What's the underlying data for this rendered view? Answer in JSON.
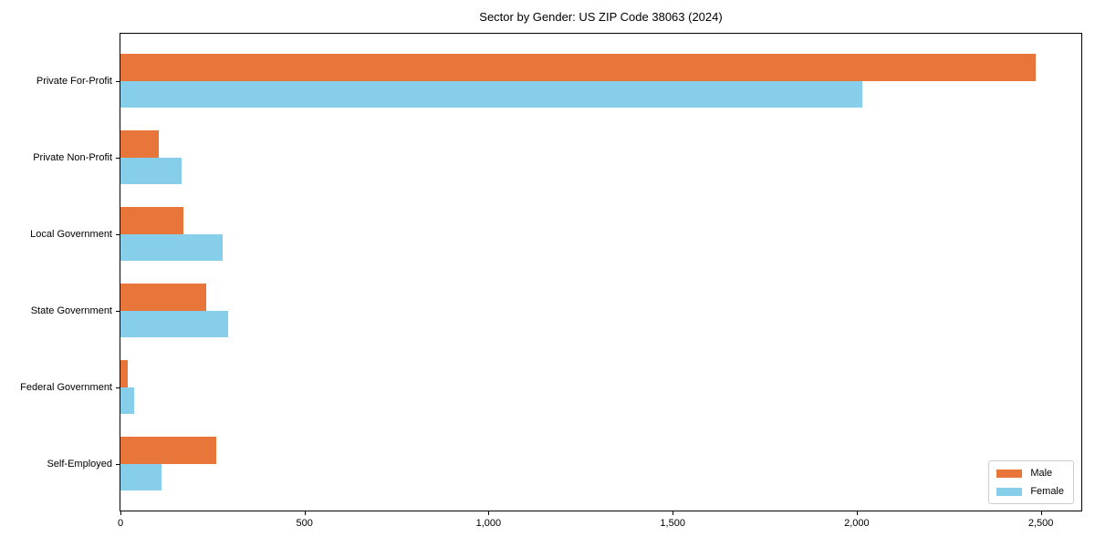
{
  "chart_data": {
    "type": "bar",
    "orientation": "horizontal",
    "title": "Sector by Gender: US ZIP Code 38063 (2024)",
    "categories": [
      "Private For-Profit",
      "Private Non-Profit",
      "Local Government",
      "State Government",
      "Federal Government",
      "Self-Employed"
    ],
    "series": [
      {
        "name": "Male",
        "color": "#E8763B",
        "values": [
          2485,
          103,
          172,
          233,
          19,
          259
        ]
      },
      {
        "name": "Female",
        "color": "#87CEEB",
        "values": [
          2015,
          167,
          277,
          293,
          36,
          112
        ]
      }
    ],
    "xlabel": "",
    "ylabel": "",
    "xlim": [
      0,
      2610
    ],
    "xticks": [
      0,
      500,
      1000,
      1500,
      2000,
      2500
    ],
    "xtick_labels": [
      "0",
      "500",
      "1,000",
      "1,500",
      "2,000",
      "2,500"
    ],
    "grid": false,
    "legend_position": "lower right",
    "axis_color": "#000000",
    "background": "#ffffff"
  }
}
